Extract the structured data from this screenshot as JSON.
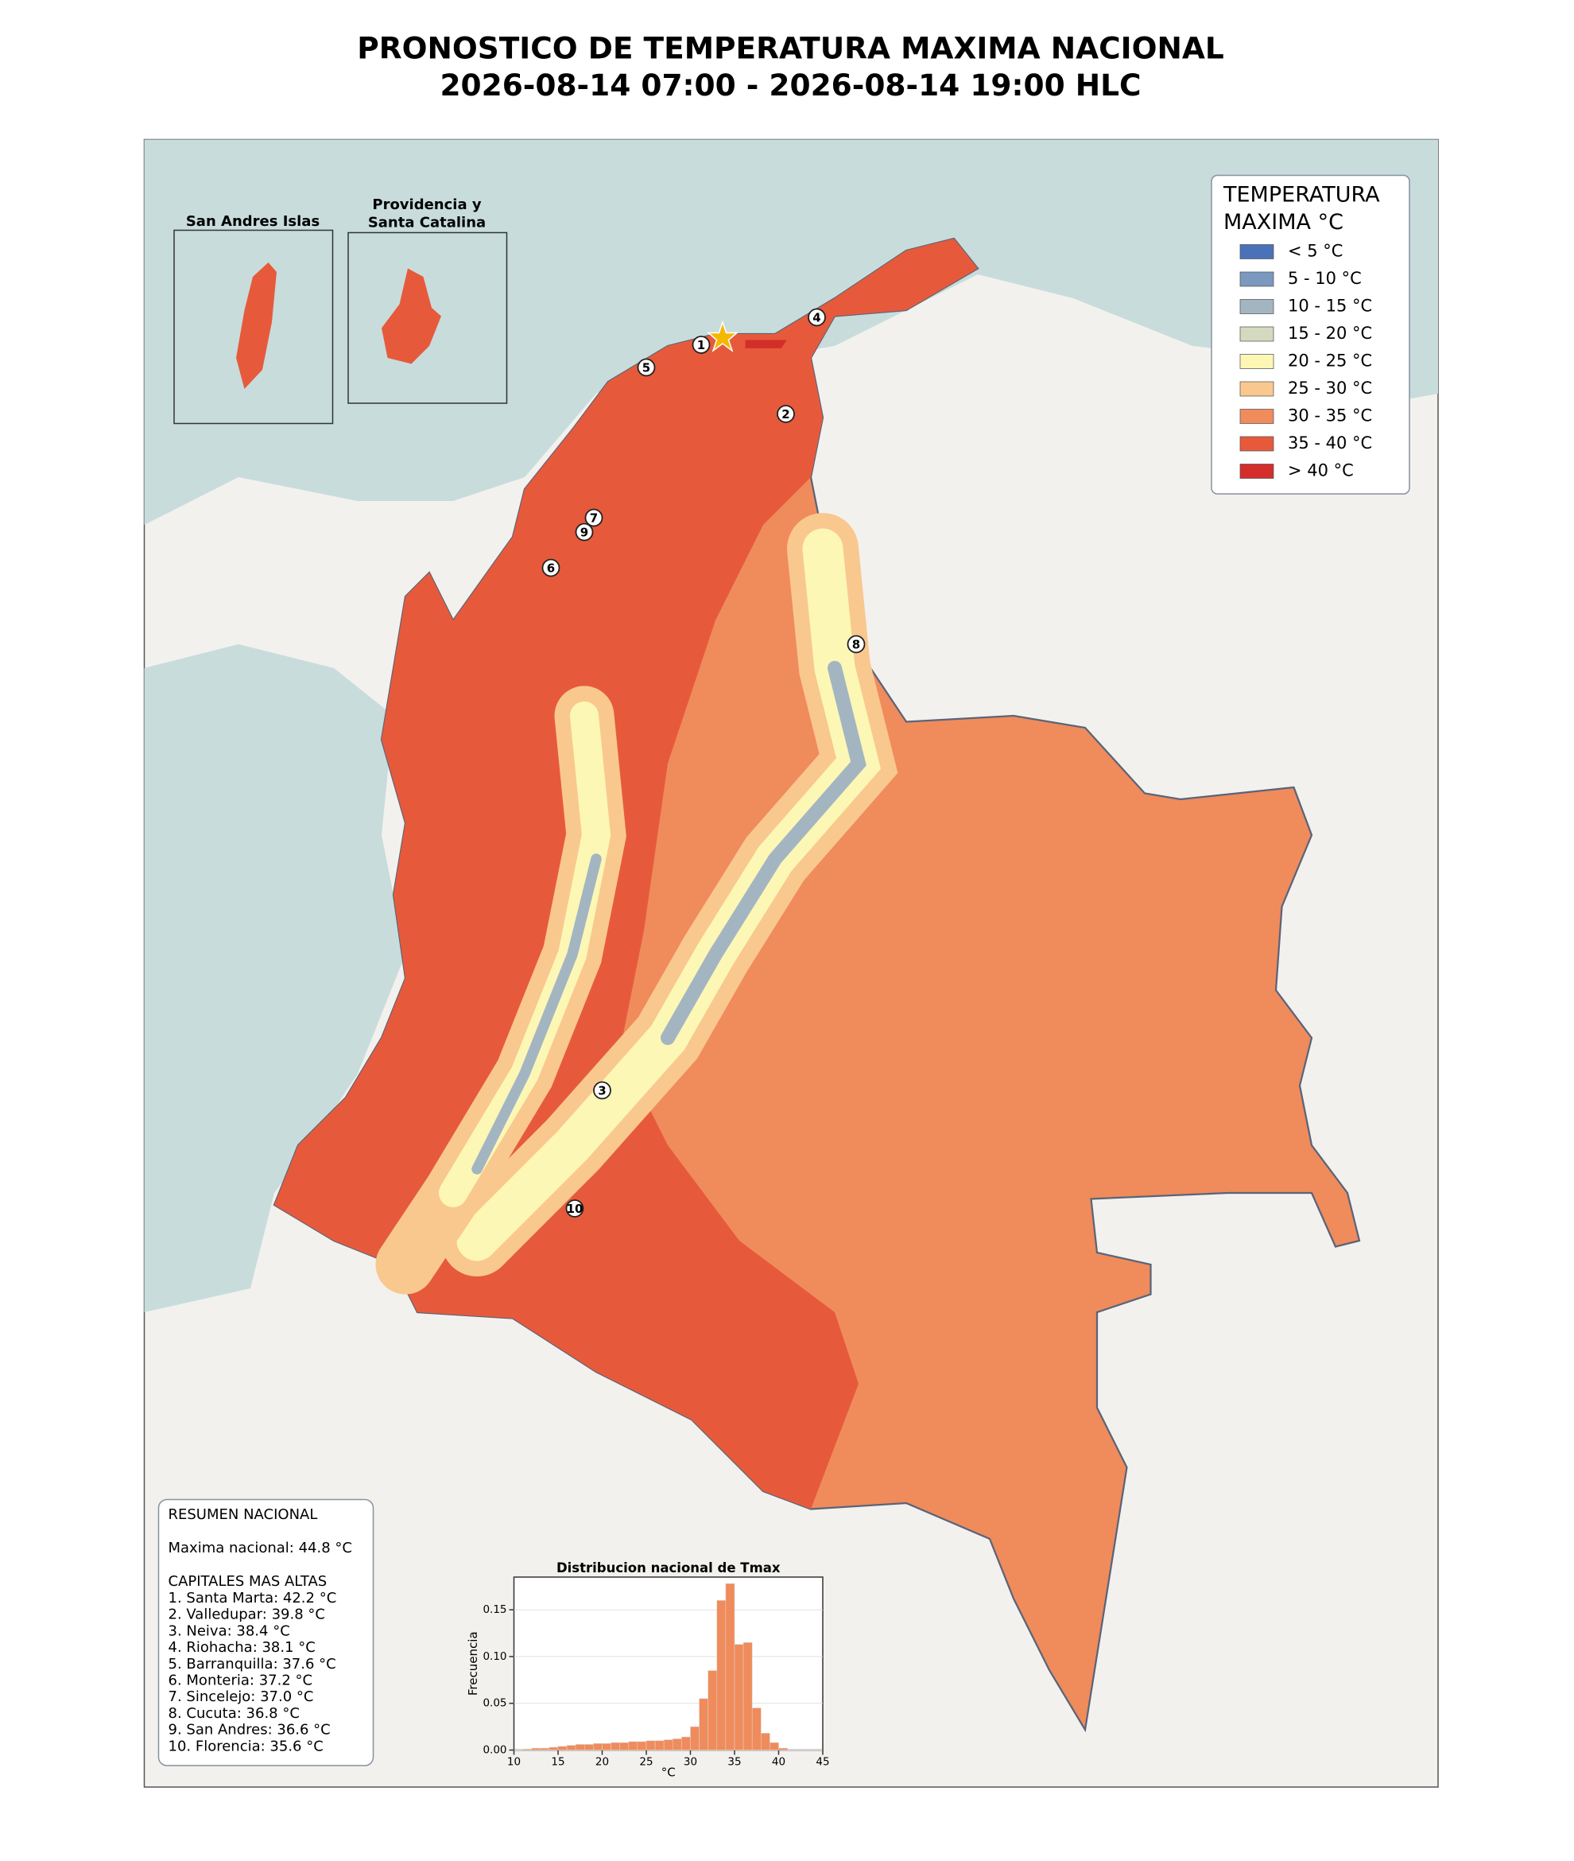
{
  "title": [
    "PRONOSTICO DE TEMPERATURA MAXIMA NACIONAL",
    "2026-08-14 07:00 - 2026-08-14 19:00 HLC"
  ],
  "insets": {
    "san_andres": "San Andres Islas",
    "providencia": [
      "Providencia y",
      "Santa Catalina"
    ]
  },
  "legend": {
    "title": [
      "TEMPERATURA",
      "MAXIMA °C"
    ],
    "items": [
      {
        "label": "< 5 °C",
        "color": "#4a72b8"
      },
      {
        "label": "5 - 10 °C",
        "color": "#7b98bf"
      },
      {
        "label": "10 - 15 °C",
        "color": "#a4b5c2"
      },
      {
        "label": "15 - 20 °C",
        "color": "#d3dac0"
      },
      {
        "label": "20 - 25 °C",
        "color": "#fdf7b5"
      },
      {
        "label": "25 - 30 °C",
        "color": "#f9c88f"
      },
      {
        "label": "30 - 35 °C",
        "color": "#f08b5c"
      },
      {
        "label": "35 - 40 °C",
        "color": "#e65a3b"
      },
      {
        "label": "> 40 °C",
        "color": "#d42e2a"
      }
    ]
  },
  "markers": [
    "1",
    "2",
    "3",
    "4",
    "5",
    "6",
    "7",
    "8",
    "9",
    "10"
  ],
  "summary": {
    "heading": "RESUMEN NACIONAL",
    "national_max": "Maxima nacional: 44.8 °C",
    "capitals_heading": "CAPITALES MAS ALTAS",
    "capitals": [
      "1. Santa Marta: 42.2 °C",
      "2. Valledupar: 39.8 °C",
      "3. Neiva: 38.4 °C",
      "4. Riohacha: 38.1 °C",
      "5. Barranquilla: 37.6 °C",
      "6. Monteria: 37.2 °C",
      "7. Sincelejo: 37.0 °C",
      "8. Cucuta: 36.8 °C",
      "9. San Andres: 36.6 °C",
      "10. Florencia: 35.6 °C"
    ]
  },
  "chart_data": {
    "type": "histogram",
    "title": "Distribucion nacional de Tmax",
    "x_label": "°C",
    "y_label": "Frecuencia",
    "color": "#f08b5c",
    "bins": [
      11,
      12,
      13,
      14,
      15,
      16,
      17,
      18,
      19,
      20,
      21,
      22,
      23,
      24,
      25,
      26,
      27,
      28,
      29,
      30,
      31,
      32,
      33,
      34,
      35,
      36,
      37,
      38,
      39,
      40,
      41
    ],
    "values": [
      0.001,
      0.002,
      0.002,
      0.003,
      0.004,
      0.005,
      0.006,
      0.006,
      0.007,
      0.007,
      0.008,
      0.008,
      0.009,
      0.009,
      0.01,
      0.01,
      0.011,
      0.012,
      0.014,
      0.025,
      0.055,
      0.085,
      0.16,
      0.178,
      0.113,
      0.115,
      0.045,
      0.018,
      0.008,
      0.002
    ],
    "xlim": [
      10,
      45
    ],
    "xticks": [
      10,
      15,
      20,
      25,
      30,
      35,
      40,
      45
    ],
    "ylim": [
      0,
      0.185
    ],
    "yticks": [
      {
        "value": 0,
        "label": "0.00"
      },
      0.05,
      {
        "value": 0.1,
        "label": "0.10"
      },
      0.15
    ],
    "grid": true
  }
}
